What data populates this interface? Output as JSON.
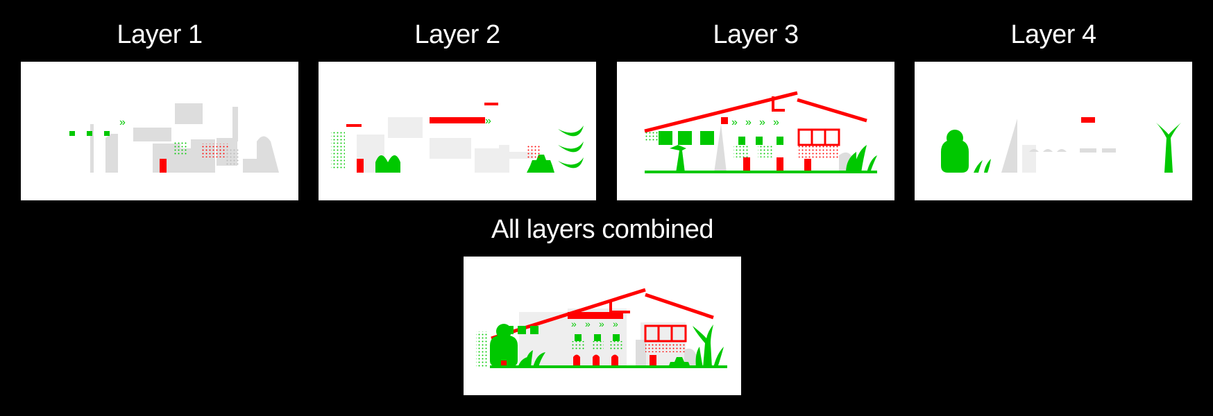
{
  "figure": {
    "layers": [
      {
        "title": "Layer 1"
      },
      {
        "title": "Layer 2"
      },
      {
        "title": "Layer 3"
      },
      {
        "title": "Layer 4"
      }
    ],
    "combined": {
      "title": "All layers combined"
    }
  },
  "colors": {
    "background": "#000000",
    "panel": "#ffffff",
    "red": "#ff0000",
    "green": "#00c800",
    "gray": "#dddddd"
  }
}
